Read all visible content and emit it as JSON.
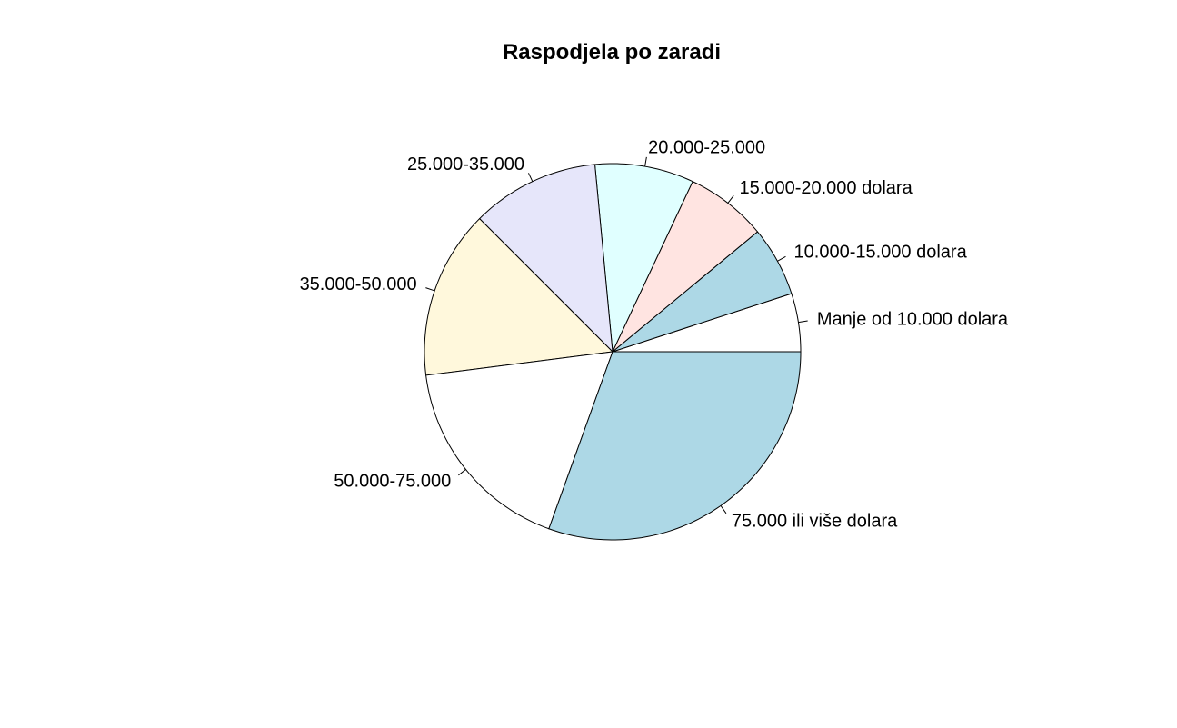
{
  "chart_data": {
    "type": "pie",
    "title": "Raspodjela po zaradi",
    "direction": "counterclockwise",
    "start": "3 o'clock",
    "slices": [
      {
        "label": "Manje od 10.000 dolara",
        "value": 5.0,
        "color": "#ffffff"
      },
      {
        "label": "10.000-15.000 dolara",
        "value": 6.0,
        "color": "#add8e6"
      },
      {
        "label": "15.000-20.000 dolara",
        "value": 7.0,
        "color": "#ffe4e1"
      },
      {
        "label": "20.000-25.000",
        "value": 8.5,
        "color": "#e0ffff"
      },
      {
        "label": "25.000-35.000",
        "value": 11.0,
        "color": "#e6e6fa"
      },
      {
        "label": "35.000-50.000",
        "value": 14.5,
        "color": "#fff8dc"
      },
      {
        "label": "50.000-75.000",
        "value": 17.5,
        "color": "#ffffff"
      },
      {
        "label": "75.000 ili više dolara",
        "value": 30.5,
        "color": "#add8e6"
      }
    ]
  }
}
